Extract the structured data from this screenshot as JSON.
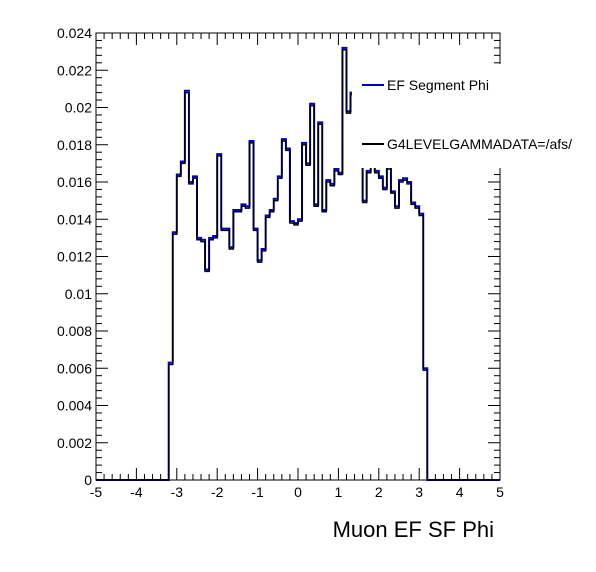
{
  "chart_data": {
    "type": "line",
    "style": "step-histogram",
    "title": "",
    "xlabel": "Muon EF SF Phi",
    "ylabel": "",
    "xlim": [
      -5,
      5
    ],
    "ylim": [
      0,
      0.024
    ],
    "x_ticks": [
      "-5",
      "-4",
      "-3",
      "-2",
      "-1",
      "0",
      "1",
      "2",
      "3",
      "4",
      "5"
    ],
    "y_ticks": [
      "0",
      "0.002",
      "0.004",
      "0.006",
      "0.008",
      "0.01",
      "0.012",
      "0.014",
      "0.016",
      "0.018",
      "0.02",
      "0.022",
      "0.024"
    ],
    "grid": false,
    "legend_position": "top-right",
    "bin_edges": [
      -3.2,
      -3.1,
      -3.0,
      -2.9,
      -2.8,
      -2.7,
      -2.6,
      -2.5,
      -2.4,
      -2.3,
      -2.2,
      -2.1,
      -2.0,
      -1.9,
      -1.8,
      -1.7,
      -1.6,
      -1.5,
      -1.4,
      -1.3,
      -1.2,
      -1.1,
      -1.0,
      -0.9,
      -0.8,
      -0.7,
      -0.6,
      -0.5,
      -0.4,
      -0.3,
      -0.2,
      -0.1,
      0.0,
      0.1,
      0.2,
      0.3,
      0.4,
      0.5,
      0.6,
      0.7,
      0.8,
      0.9,
      1.0,
      1.1,
      1.2,
      1.3,
      1.4,
      1.5,
      1.6,
      1.7,
      1.8,
      1.9,
      2.0,
      2.1,
      2.2,
      2.3,
      2.4,
      2.5,
      2.6,
      2.7,
      2.8,
      2.9,
      3.0,
      3.1,
      3.2
    ],
    "series": [
      {
        "name": "EF Segment Phi",
        "color": "#0000cc",
        "values": [
          0.0063,
          0.0133,
          0.0164,
          0.0171,
          0.0209,
          0.016,
          0.0163,
          0.013,
          0.0129,
          0.0113,
          0.013,
          0.0131,
          0.0175,
          0.0135,
          0.0135,
          0.0125,
          0.0145,
          0.0145,
          0.0148,
          0.0147,
          0.0182,
          0.0135,
          0.0118,
          0.0124,
          0.0142,
          0.0145,
          0.0151,
          0.0163,
          0.0183,
          0.0178,
          0.0139,
          0.0138,
          0.014,
          0.0181,
          0.017,
          0.0202,
          0.0148,
          0.0192,
          0.0145,
          0.0161,
          0.0159,
          0.0167,
          0.0165,
          0.0232,
          0.0198,
          0.0208,
          0.0188,
          0.017,
          0.015,
          0.0166,
          0.017,
          0.0166,
          0.0163,
          0.0157,
          0.0168,
          0.0155,
          0.0147,
          0.0161,
          0.0162,
          0.016,
          0.0149,
          0.0147,
          0.0143,
          0.006
        ]
      },
      {
        "name": "G4LEVELGAMMADATA=/afs/",
        "color": "#000000",
        "values": [
          0.0062,
          0.0132,
          0.0163,
          0.017,
          0.0208,
          0.0159,
          0.0162,
          0.0129,
          0.0128,
          0.0112,
          0.0129,
          0.013,
          0.0174,
          0.0134,
          0.0134,
          0.0124,
          0.0144,
          0.0144,
          0.0147,
          0.0146,
          0.0181,
          0.0134,
          0.0117,
          0.0123,
          0.0141,
          0.0144,
          0.015,
          0.0162,
          0.0182,
          0.0177,
          0.0138,
          0.0137,
          0.0139,
          0.018,
          0.0169,
          0.0201,
          0.0147,
          0.0191,
          0.0144,
          0.016,
          0.0158,
          0.0166,
          0.0164,
          0.0231,
          0.0197,
          0.0207,
          0.0187,
          0.0169,
          0.0149,
          0.0165,
          0.0169,
          0.0165,
          0.0162,
          0.0156,
          0.0167,
          0.0154,
          0.0146,
          0.016,
          0.0161,
          0.0159,
          0.0148,
          0.0146,
          0.0142,
          0.0059
        ]
      }
    ]
  }
}
